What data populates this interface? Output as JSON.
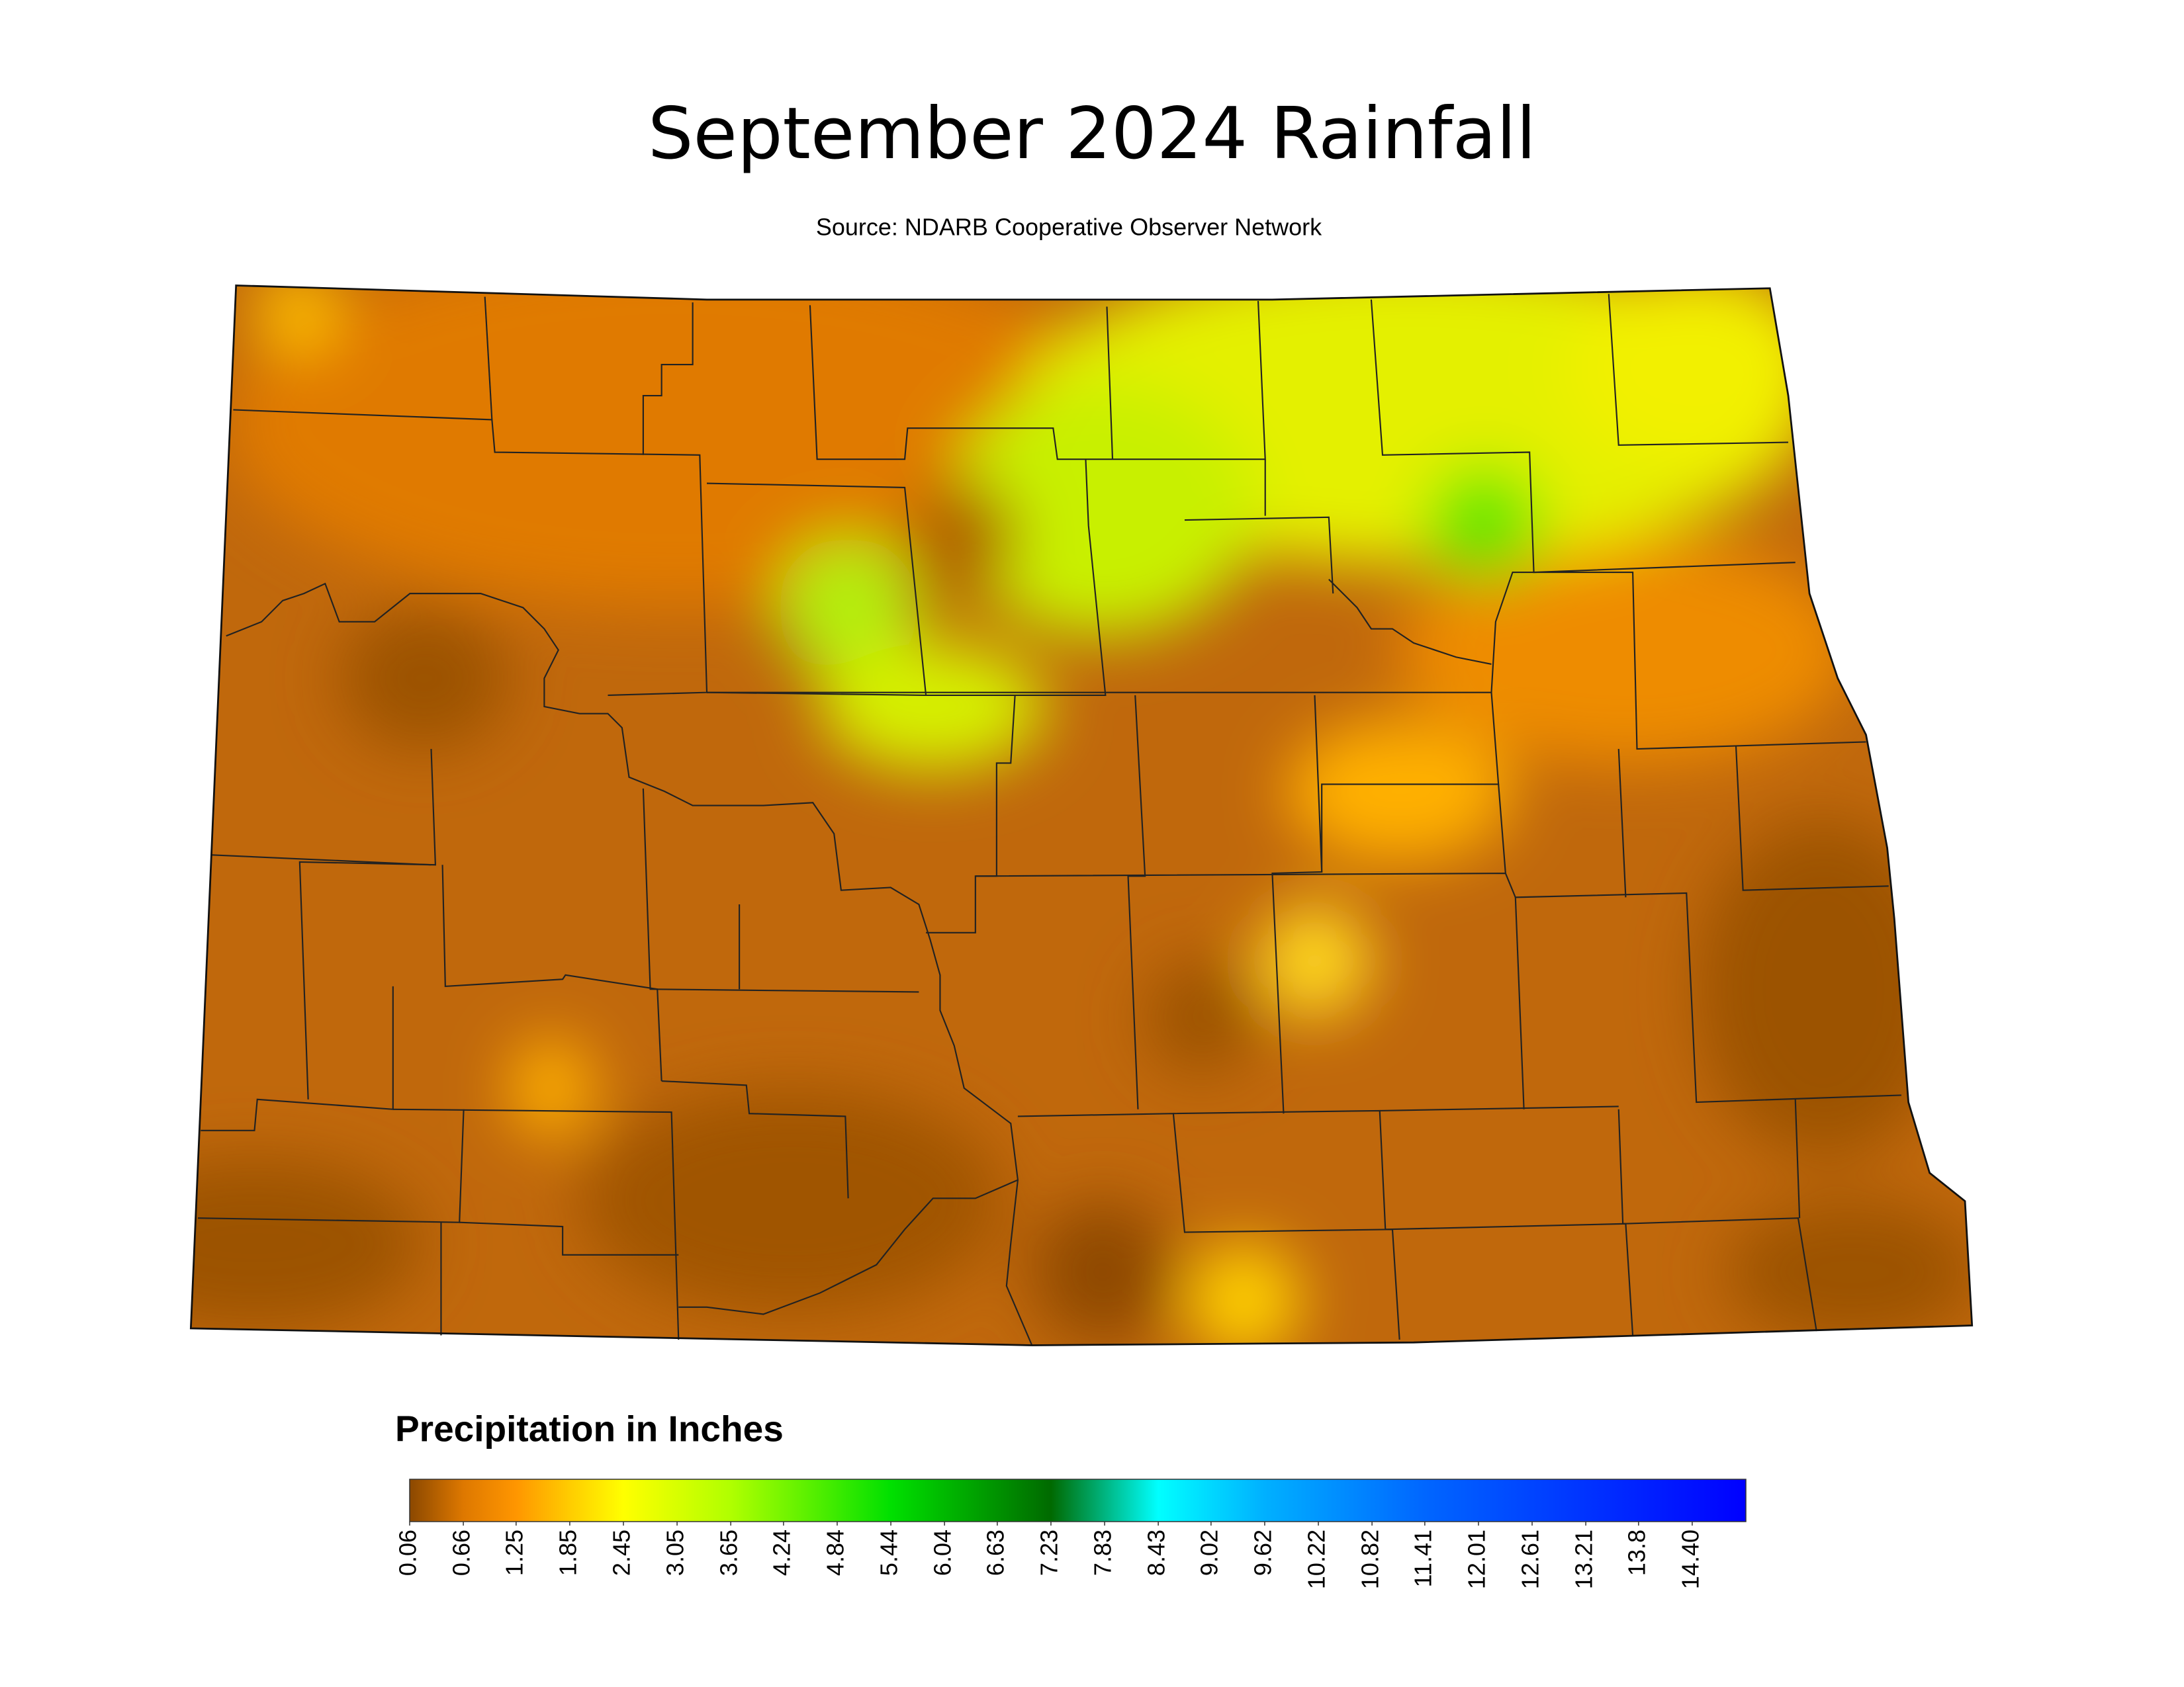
{
  "title": "September 2024 Rainfall",
  "subtitle": "Source: NDARB Cooperative Observer Network",
  "legend": {
    "title": "Precipitation in Inches",
    "range": [
      0.06,
      15.0
    ],
    "ticks": [
      0.06,
      0.66,
      1.25,
      1.85,
      2.45,
      3.05,
      3.65,
      4.24,
      4.84,
      5.44,
      6.04,
      6.63,
      7.23,
      7.83,
      8.43,
      9.02,
      9.62,
      10.22,
      10.82,
      11.41,
      12.01,
      12.61,
      13.21,
      13.8,
      {
        "value": 14.4,
        "label": "14.40"
      }
    ],
    "colors": [
      {
        "value": 0.06,
        "color": "#8b4800"
      },
      {
        "value": 0.66,
        "color": "#de7800"
      },
      {
        "value": 1.25,
        "color": "#ff9600"
      },
      {
        "value": 1.85,
        "color": "#ffcc00"
      },
      {
        "value": 2.45,
        "color": "#ffff00"
      },
      {
        "value": 3.65,
        "color": "#b0ff00"
      },
      {
        "value": 5.44,
        "color": "#00e000"
      },
      {
        "value": 7.23,
        "color": "#006a00"
      },
      {
        "value": 8.43,
        "color": "#00ffff"
      },
      {
        "value": 9.62,
        "color": "#00b0ff"
      },
      {
        "value": 11.41,
        "color": "#0066ff"
      },
      {
        "value": 15.0,
        "color": "#0000ff"
      }
    ]
  }
}
